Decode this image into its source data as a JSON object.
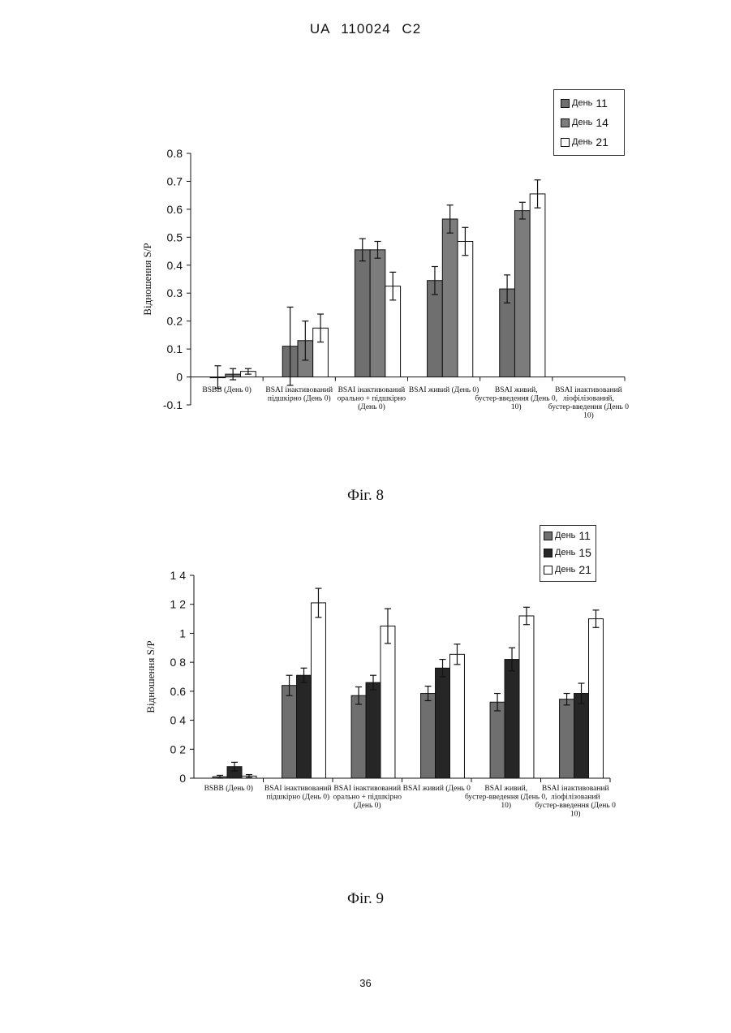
{
  "page": {
    "header": "UA 110024 C2",
    "page_number": "36"
  },
  "colors": {
    "day11": "#6f6f6f",
    "day14": "#7c7c7c",
    "day15": "#262626",
    "day21": "#ffffff"
  },
  "chart_data": [
    {
      "type": "bar",
      "caption": "Фіг. 8",
      "ylabel": "Відношення S/P",
      "ylim": [
        -0.1,
        0.8
      ],
      "yticks": [
        "0.8",
        "0.7",
        "0.6",
        "0.5",
        "0.4",
        "0.3",
        "0.2",
        "0.1",
        "0",
        "-0.1"
      ],
      "categories": [
        "BSBB (День 0)",
        "BSAI інактивований підшкірно (День 0)",
        "BSAI інактивований орально + підшкірно (День 0)",
        "BSAI живий (День 0)",
        "BSAI живий, бустер-введення (День 0, 10)",
        "BSAI інактивований ліофілізований, бустер-введення (День 0 10)"
      ],
      "series": [
        {
          "name": "День 11",
          "values": [
            0.0,
            0.11,
            0.455,
            0.345,
            0.315,
            null
          ],
          "errors": [
            0.04,
            0.14,
            0.04,
            0.05,
            0.05,
            null
          ]
        },
        {
          "name": "День 14",
          "values": [
            0.01,
            0.13,
            0.455,
            0.565,
            0.595,
            null
          ],
          "errors": [
            0.02,
            0.07,
            0.03,
            0.05,
            0.03,
            null
          ]
        },
        {
          "name": "День 21",
          "values": [
            0.02,
            0.175,
            0.325,
            0.485,
            0.655,
            null
          ],
          "errors": [
            0.01,
            0.05,
            0.05,
            0.05,
            0.05,
            null
          ]
        }
      ],
      "legend": [
        {
          "label": "День",
          "num": "11"
        },
        {
          "label": "День",
          "num": "14"
        },
        {
          "label": "День",
          "num": "21"
        }
      ],
      "legend_position": "top-right"
    },
    {
      "type": "bar",
      "caption": "Фіг. 9",
      "ylabel": "Відношення S/P",
      "ylim": [
        0,
        1.4
      ],
      "yticks": [
        "1 4",
        "1 2",
        "1",
        "0 8",
        "0.6",
        "0 4",
        "0 2",
        "0"
      ],
      "categories": [
        "BSBB (День 0)",
        "BSAI інактивований підшкірно (День 0)",
        "BSAI інактивований орально + підшкірно (День 0)",
        "BSAI живий (День 0",
        "BSAI живий, бустер-введення (День 0, 10)",
        "BSAI інактивований ліофілізований бустер-введення (День 0 10)"
      ],
      "series": [
        {
          "name": "День 11",
          "values": [
            0.01,
            0.64,
            0.57,
            0.585,
            0.525,
            0.545
          ],
          "errors": [
            0.01,
            0.07,
            0.06,
            0.05,
            0.06,
            0.04
          ]
        },
        {
          "name": "День 15",
          "values": [
            0.08,
            0.71,
            0.66,
            0.76,
            0.82,
            0.585
          ],
          "errors": [
            0.03,
            0.05,
            0.05,
            0.06,
            0.08,
            0.07
          ]
        },
        {
          "name": "День 21",
          "values": [
            0.015,
            1.21,
            1.05,
            0.855,
            1.12,
            1.1
          ],
          "errors": [
            0.01,
            0.1,
            0.12,
            0.07,
            0.06,
            0.06
          ]
        }
      ],
      "legend": [
        {
          "label": "День",
          "num": "11"
        },
        {
          "label": "День",
          "num": "15"
        },
        {
          "label": "День",
          "num": "21"
        }
      ],
      "legend_position": "top-right"
    }
  ]
}
